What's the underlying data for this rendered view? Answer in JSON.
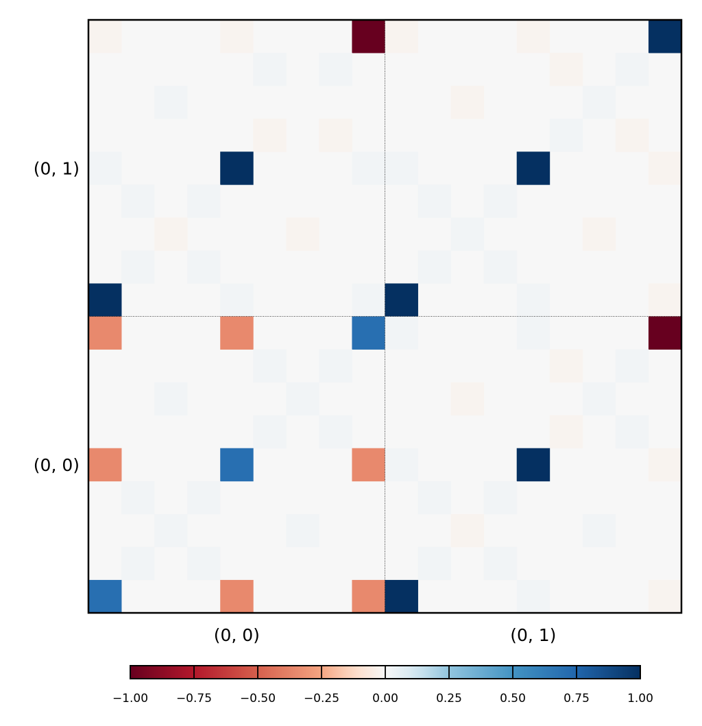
{
  "chart_data": {
    "type": "heatmap",
    "title": "",
    "xlabel": "",
    "ylabel": "",
    "grid": false,
    "rows": 18,
    "cols": 18,
    "row_order": "top-to-bottom",
    "x_tick_labels": [
      "(0, 0)",
      "(0, 1)"
    ],
    "y_tick_labels": [
      "(0, 1)",
      "(0, 0)"
    ],
    "block_divider": "dotted lines splitting the matrix into 2x2 blocks of 9x9",
    "colormap": "RdBu",
    "vmin": -1.0,
    "vmax": 1.0,
    "colorbar": {
      "orientation": "horizontal",
      "placement": "bottom",
      "ticks": [
        "−1.00",
        "−0.75",
        "−0.50",
        "−0.25",
        "0.00",
        "0.25",
        "0.50",
        "0.75",
        "1.00"
      ]
    },
    "cells": [
      {
        "r": 0,
        "c": 0,
        "v": -0.02
      },
      {
        "r": 0,
        "c": 4,
        "v": -0.02
      },
      {
        "r": 0,
        "c": 8,
        "v": -1.0
      },
      {
        "r": 0,
        "c": 9,
        "v": -0.02
      },
      {
        "r": 0,
        "c": 13,
        "v": -0.02
      },
      {
        "r": 0,
        "c": 17,
        "v": 1.0
      },
      {
        "r": 1,
        "c": 5,
        "v": 0.02
      },
      {
        "r": 1,
        "c": 7,
        "v": 0.02
      },
      {
        "r": 1,
        "c": 14,
        "v": -0.02
      },
      {
        "r": 1,
        "c": 16,
        "v": 0.02
      },
      {
        "r": 2,
        "c": 2,
        "v": 0.02
      },
      {
        "r": 2,
        "c": 11,
        "v": -0.02
      },
      {
        "r": 2,
        "c": 15,
        "v": 0.02
      },
      {
        "r": 3,
        "c": 5,
        "v": -0.02
      },
      {
        "r": 3,
        "c": 7,
        "v": -0.02
      },
      {
        "r": 3,
        "c": 14,
        "v": 0.02
      },
      {
        "r": 3,
        "c": 16,
        "v": -0.02
      },
      {
        "r": 4,
        "c": 0,
        "v": 0.02
      },
      {
        "r": 4,
        "c": 4,
        "v": 1.0
      },
      {
        "r": 4,
        "c": 8,
        "v": 0.02
      },
      {
        "r": 4,
        "c": 9,
        "v": 0.02
      },
      {
        "r": 4,
        "c": 13,
        "v": 1.0
      },
      {
        "r": 4,
        "c": 17,
        "v": -0.02
      },
      {
        "r": 5,
        "c": 1,
        "v": 0.02
      },
      {
        "r": 5,
        "c": 3,
        "v": 0.02
      },
      {
        "r": 5,
        "c": 10,
        "v": 0.02
      },
      {
        "r": 5,
        "c": 12,
        "v": 0.02
      },
      {
        "r": 6,
        "c": 2,
        "v": -0.02
      },
      {
        "r": 6,
        "c": 6,
        "v": -0.02
      },
      {
        "r": 6,
        "c": 11,
        "v": 0.02
      },
      {
        "r": 6,
        "c": 15,
        "v": -0.02
      },
      {
        "r": 7,
        "c": 1,
        "v": 0.02
      },
      {
        "r": 7,
        "c": 3,
        "v": 0.02
      },
      {
        "r": 7,
        "c": 10,
        "v": 0.02
      },
      {
        "r": 7,
        "c": 12,
        "v": 0.02
      },
      {
        "r": 8,
        "c": 0,
        "v": 1.0
      },
      {
        "r": 8,
        "c": 4,
        "v": 0.02
      },
      {
        "r": 8,
        "c": 8,
        "v": 0.02
      },
      {
        "r": 8,
        "c": 9,
        "v": 1.0
      },
      {
        "r": 8,
        "c": 13,
        "v": 0.02
      },
      {
        "r": 8,
        "c": 17,
        "v": -0.02
      },
      {
        "r": 9,
        "c": 0,
        "v": -0.35
      },
      {
        "r": 9,
        "c": 4,
        "v": -0.35
      },
      {
        "r": 9,
        "c": 8,
        "v": 0.7
      },
      {
        "r": 9,
        "c": 9,
        "v": 0.02
      },
      {
        "r": 9,
        "c": 13,
        "v": 0.02
      },
      {
        "r": 9,
        "c": 17,
        "v": -1.0
      },
      {
        "r": 10,
        "c": 5,
        "v": 0.02
      },
      {
        "r": 10,
        "c": 7,
        "v": 0.02
      },
      {
        "r": 10,
        "c": 14,
        "v": -0.02
      },
      {
        "r": 10,
        "c": 16,
        "v": 0.02
      },
      {
        "r": 11,
        "c": 2,
        "v": 0.02
      },
      {
        "r": 11,
        "c": 6,
        "v": 0.02
      },
      {
        "r": 11,
        "c": 11,
        "v": -0.02
      },
      {
        "r": 11,
        "c": 15,
        "v": 0.02
      },
      {
        "r": 12,
        "c": 5,
        "v": 0.02
      },
      {
        "r": 12,
        "c": 7,
        "v": 0.02
      },
      {
        "r": 12,
        "c": 14,
        "v": -0.02
      },
      {
        "r": 12,
        "c": 16,
        "v": 0.02
      },
      {
        "r": 13,
        "c": 0,
        "v": -0.35
      },
      {
        "r": 13,
        "c": 4,
        "v": 0.7
      },
      {
        "r": 13,
        "c": 8,
        "v": -0.35
      },
      {
        "r": 13,
        "c": 9,
        "v": 0.02
      },
      {
        "r": 13,
        "c": 13,
        "v": 1.0
      },
      {
        "r": 13,
        "c": 17,
        "v": -0.02
      },
      {
        "r": 14,
        "c": 1,
        "v": 0.02
      },
      {
        "r": 14,
        "c": 3,
        "v": 0.02
      },
      {
        "r": 14,
        "c": 10,
        "v": 0.02
      },
      {
        "r": 14,
        "c": 12,
        "v": 0.02
      },
      {
        "r": 15,
        "c": 2,
        "v": 0.02
      },
      {
        "r": 15,
        "c": 6,
        "v": 0.02
      },
      {
        "r": 15,
        "c": 11,
        "v": -0.02
      },
      {
        "r": 15,
        "c": 15,
        "v": 0.02
      },
      {
        "r": 16,
        "c": 1,
        "v": 0.02
      },
      {
        "r": 16,
        "c": 3,
        "v": 0.02
      },
      {
        "r": 16,
        "c": 10,
        "v": 0.02
      },
      {
        "r": 16,
        "c": 12,
        "v": 0.02
      },
      {
        "r": 17,
        "c": 0,
        "v": 0.7
      },
      {
        "r": 17,
        "c": 4,
        "v": -0.35
      },
      {
        "r": 17,
        "c": 8,
        "v": -0.35
      },
      {
        "r": 17,
        "c": 9,
        "v": 1.0
      },
      {
        "r": 17,
        "c": 13,
        "v": 0.02
      },
      {
        "r": 17,
        "c": 17,
        "v": -0.02
      }
    ]
  }
}
